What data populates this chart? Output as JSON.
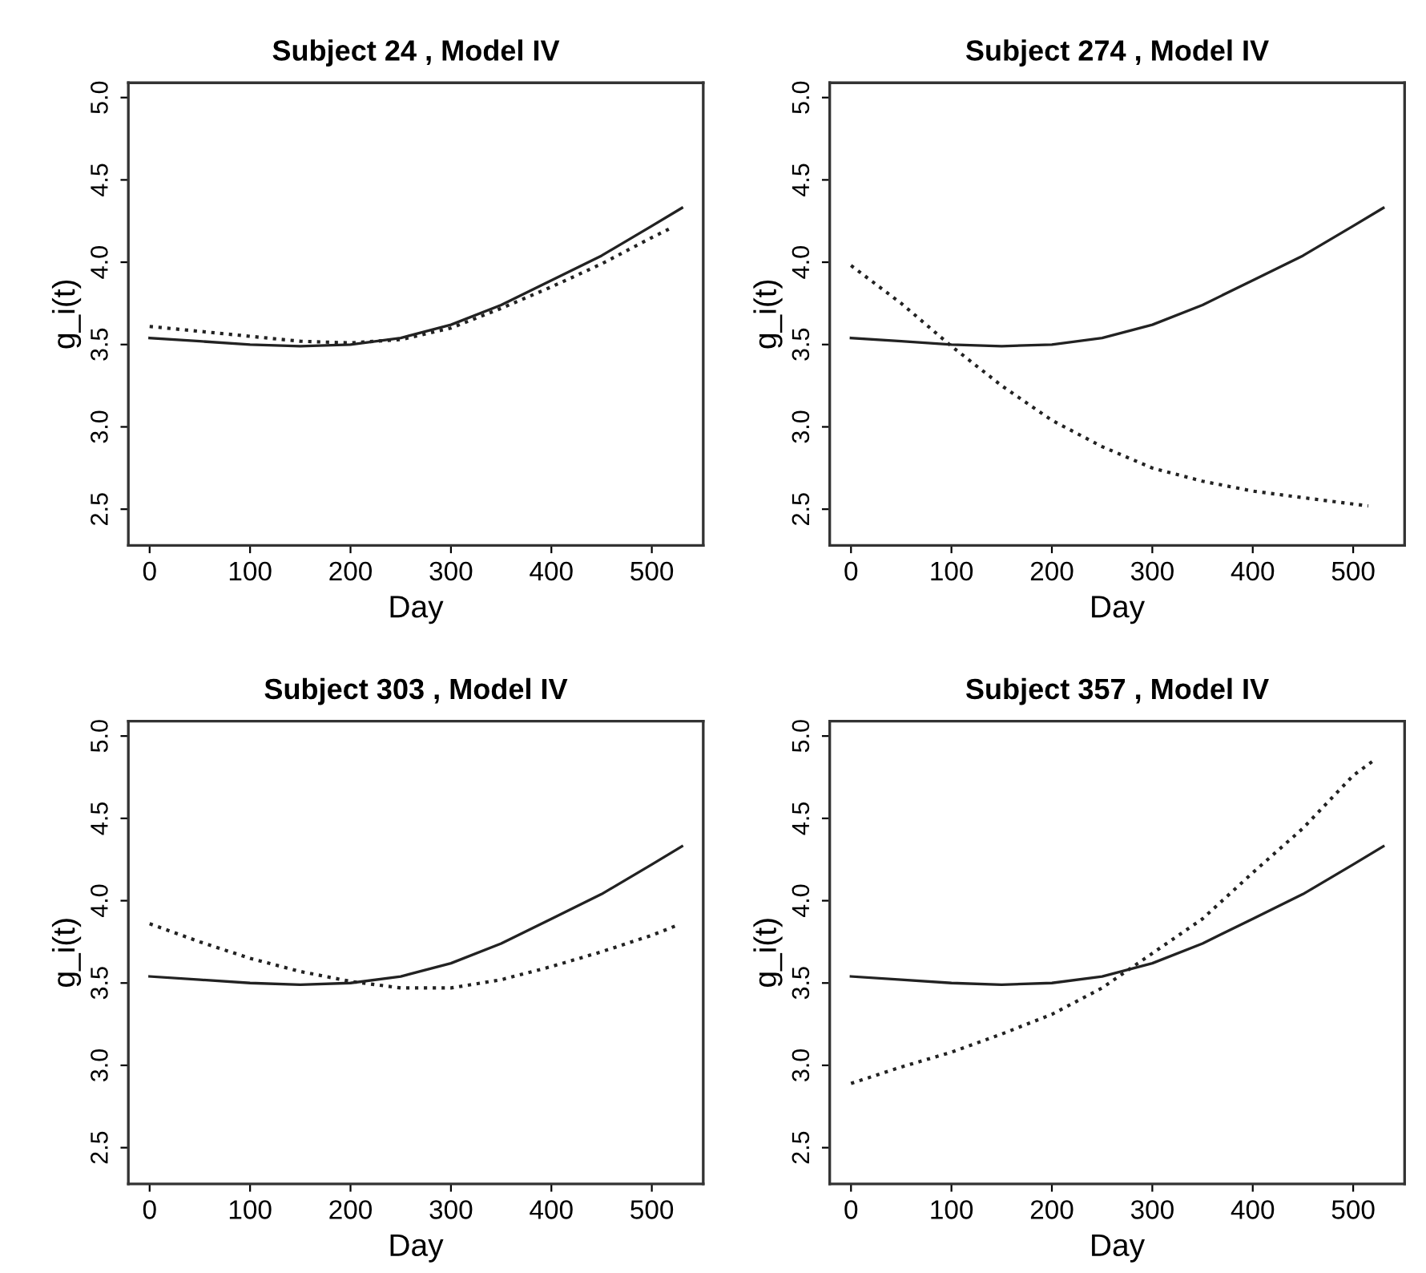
{
  "chart_data": [
    {
      "type": "line",
      "title": "Subject 24 , Model IV",
      "xlabel": "Day",
      "ylabel": "g_i(t)",
      "xlim": [
        -21.2,
        551.2
      ],
      "ylim": [
        2.28,
        5.09
      ],
      "xticks": [
        0,
        100,
        200,
        300,
        400,
        500
      ],
      "yticks": [
        {
          "value": 2.5,
          "label": "2.5"
        },
        {
          "value": 3.0,
          "label": "3.0"
        },
        {
          "value": 3.5,
          "label": "3.5"
        },
        {
          "value": 4.0,
          "label": "4.0"
        },
        {
          "value": 4.5,
          "label": "4.5"
        },
        {
          "value": 5.0,
          "label": "5.0"
        }
      ],
      "grid": false,
      "series": [
        {
          "color": "#222222",
          "line_style": "solid",
          "x": [
            0,
            50,
            100,
            150,
            200,
            250,
            300,
            350,
            400,
            450,
            500,
            530
          ],
          "values": [
            3.54,
            3.52,
            3.5,
            3.49,
            3.5,
            3.54,
            3.62,
            3.74,
            3.89,
            4.04,
            4.22,
            4.33
          ]
        },
        {
          "color": "#222222",
          "line_style": "dotted",
          "x": [
            0,
            50,
            100,
            150,
            200,
            250,
            300,
            350,
            400,
            450,
            500,
            520
          ],
          "values": [
            3.61,
            3.58,
            3.55,
            3.52,
            3.51,
            3.53,
            3.6,
            3.72,
            3.85,
            3.99,
            4.15,
            4.21
          ]
        }
      ]
    },
    {
      "type": "line",
      "title": "Subject 274 , Model IV",
      "xlabel": "Day",
      "ylabel": "g_i(t)",
      "xlim": [
        -21.2,
        551.2
      ],
      "ylim": [
        2.28,
        5.09
      ],
      "xticks": [
        0,
        100,
        200,
        300,
        400,
        500
      ],
      "yticks": [
        {
          "value": 2.5,
          "label": "2.5"
        },
        {
          "value": 3.0,
          "label": "3.0"
        },
        {
          "value": 3.5,
          "label": "3.5"
        },
        {
          "value": 4.0,
          "label": "4.0"
        },
        {
          "value": 4.5,
          "label": "4.5"
        },
        {
          "value": 5.0,
          "label": "5.0"
        }
      ],
      "grid": false,
      "series": [
        {
          "color": "#222222",
          "line_style": "solid",
          "x": [
            0,
            50,
            100,
            150,
            200,
            250,
            300,
            350,
            400,
            450,
            500,
            530
          ],
          "values": [
            3.54,
            3.52,
            3.5,
            3.49,
            3.5,
            3.54,
            3.62,
            3.74,
            3.89,
            4.04,
            4.22,
            4.33
          ]
        },
        {
          "color": "#222222",
          "line_style": "dotted",
          "x": [
            0,
            50,
            100,
            150,
            200,
            250,
            300,
            350,
            400,
            450,
            515
          ],
          "values": [
            3.98,
            3.75,
            3.49,
            3.25,
            3.04,
            2.88,
            2.75,
            2.67,
            2.61,
            2.57,
            2.52
          ]
        }
      ]
    },
    {
      "type": "line",
      "title": "Subject 303 , Model IV",
      "xlabel": "Day",
      "ylabel": "g_i(t)",
      "xlim": [
        -21.2,
        551.2
      ],
      "ylim": [
        2.28,
        5.09
      ],
      "xticks": [
        0,
        100,
        200,
        300,
        400,
        500
      ],
      "yticks": [
        {
          "value": 2.5,
          "label": "2.5"
        },
        {
          "value": 3.0,
          "label": "3.0"
        },
        {
          "value": 3.5,
          "label": "3.5"
        },
        {
          "value": 4.0,
          "label": "4.0"
        },
        {
          "value": 4.5,
          "label": "4.5"
        },
        {
          "value": 5.0,
          "label": "5.0"
        }
      ],
      "grid": false,
      "series": [
        {
          "color": "#222222",
          "line_style": "solid",
          "x": [
            0,
            50,
            100,
            150,
            200,
            250,
            300,
            350,
            400,
            450,
            500,
            530
          ],
          "values": [
            3.54,
            3.52,
            3.5,
            3.49,
            3.5,
            3.54,
            3.62,
            3.74,
            3.89,
            4.04,
            4.22,
            4.33
          ]
        },
        {
          "color": "#222222",
          "line_style": "dotted",
          "x": [
            0,
            50,
            100,
            150,
            200,
            250,
            300,
            350,
            400,
            450,
            500,
            525
          ],
          "values": [
            3.86,
            3.75,
            3.65,
            3.57,
            3.51,
            3.47,
            3.47,
            3.52,
            3.6,
            3.69,
            3.79,
            3.85
          ]
        }
      ]
    },
    {
      "type": "line",
      "title": "Subject 357 , Model IV",
      "xlabel": "Day",
      "ylabel": "g_i(t)",
      "xlim": [
        -21.2,
        551.2
      ],
      "ylim": [
        2.28,
        5.09
      ],
      "xticks": [
        0,
        100,
        200,
        300,
        400,
        500
      ],
      "yticks": [
        {
          "value": 2.5,
          "label": "2.5"
        },
        {
          "value": 3.0,
          "label": "3.0"
        },
        {
          "value": 3.5,
          "label": "3.5"
        },
        {
          "value": 4.0,
          "label": "4.0"
        },
        {
          "value": 4.5,
          "label": "4.5"
        },
        {
          "value": 5.0,
          "label": "5.0"
        }
      ],
      "grid": false,
      "series": [
        {
          "color": "#222222",
          "line_style": "solid",
          "x": [
            0,
            50,
            100,
            150,
            200,
            250,
            300,
            350,
            400,
            450,
            500,
            530
          ],
          "values": [
            3.54,
            3.52,
            3.5,
            3.49,
            3.5,
            3.54,
            3.62,
            3.74,
            3.89,
            4.04,
            4.22,
            4.33
          ]
        },
        {
          "color": "#222222",
          "line_style": "dotted",
          "x": [
            0,
            50,
            100,
            150,
            200,
            250,
            300,
            350,
            400,
            450,
            500,
            520
          ],
          "values": [
            2.89,
            2.99,
            3.08,
            3.19,
            3.31,
            3.47,
            3.68,
            3.89,
            4.17,
            4.44,
            4.76,
            4.85
          ]
        }
      ]
    }
  ]
}
